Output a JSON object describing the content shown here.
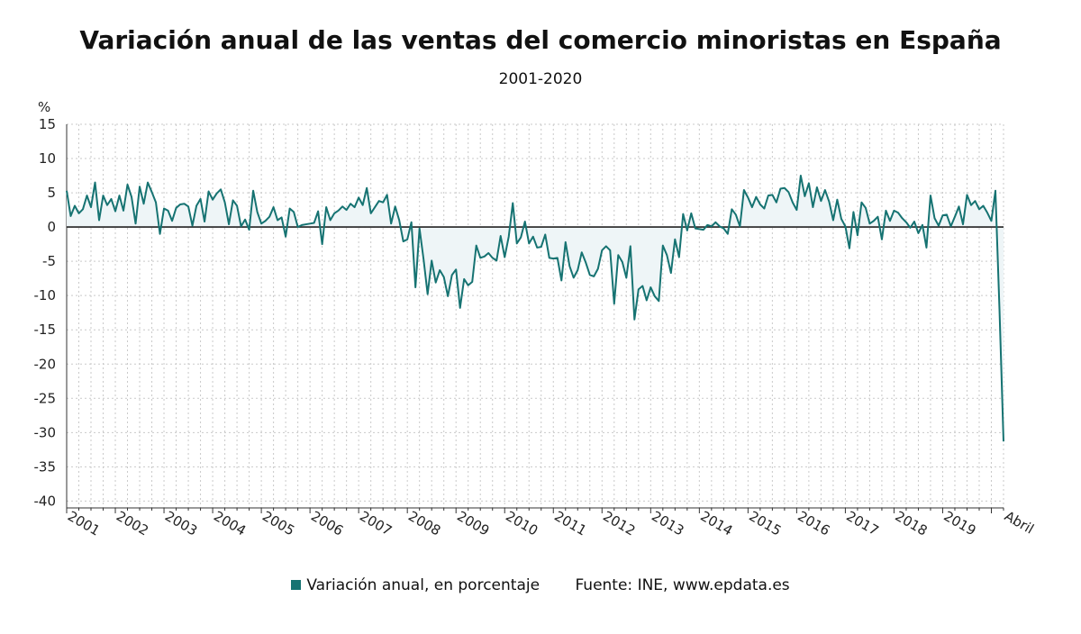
{
  "chart_data": {
    "type": "area",
    "title": "Variación anual de las ventas del comercio minoristas en España",
    "subtitle": "2001-2020",
    "ylabel": "%",
    "ylim": [
      -41,
      15
    ],
    "yticks": [
      15,
      10,
      5,
      0,
      -5,
      -10,
      -15,
      -20,
      -25,
      -30,
      -35,
      -40
    ],
    "xlim": [
      2001.0,
      2020.25
    ],
    "xticks": [
      {
        "value": 2001,
        "label": "2001"
      },
      {
        "value": 2002,
        "label": "2002"
      },
      {
        "value": 2003,
        "label": "2003"
      },
      {
        "value": 2004,
        "label": "2004"
      },
      {
        "value": 2005,
        "label": "2005"
      },
      {
        "value": 2006,
        "label": "2006"
      },
      {
        "value": 2007,
        "label": "2007"
      },
      {
        "value": 2008,
        "label": "2008"
      },
      {
        "value": 2009,
        "label": "2009"
      },
      {
        "value": 2010,
        "label": "2010"
      },
      {
        "value": 2011,
        "label": "2011"
      },
      {
        "value": 2012,
        "label": "2012"
      },
      {
        "value": 2013,
        "label": "2013"
      },
      {
        "value": 2014,
        "label": "2014"
      },
      {
        "value": 2015,
        "label": "2015"
      },
      {
        "value": 2016,
        "label": "2016"
      },
      {
        "value": 2017,
        "label": "2017"
      },
      {
        "value": 2018,
        "label": "2018"
      },
      {
        "value": 2019,
        "label": "2019"
      },
      {
        "value": 2020.25,
        "label": "Abril"
      }
    ],
    "grid": true,
    "zero_line": true,
    "legend_position": "bottom",
    "colors": {
      "line": "#167372",
      "fill": "#eef5f7",
      "grid": "#c9c9c9",
      "zero": "#222222"
    },
    "series": [
      {
        "name": "Variación anual, en porcentaje",
        "start": "2001-01",
        "frequency": "monthly",
        "values": [
          5.3,
          1.6,
          3.1,
          2.0,
          2.6,
          4.6,
          2.9,
          6.5,
          1.0,
          4.6,
          3.2,
          4.1,
          2.3,
          4.6,
          2.4,
          6.2,
          4.4,
          0.5,
          5.9,
          3.4,
          6.5,
          5.1,
          3.6,
          -1.0,
          2.7,
          2.4,
          0.9,
          2.8,
          3.3,
          3.4,
          3.0,
          0.2,
          3.1,
          4.1,
          0.8,
          5.2,
          4.0,
          4.9,
          5.5,
          3.6,
          0.4,
          3.9,
          3.1,
          0.1,
          1.1,
          -0.4,
          5.3,
          2.2,
          0.5,
          0.9,
          1.5,
          2.9,
          1.0,
          1.4,
          -1.4,
          2.7,
          2.2,
          0.0,
          0.3,
          0.4,
          0.5,
          0.6,
          2.3,
          -2.5,
          2.9,
          1.0,
          2.0,
          2.4,
          3.0,
          2.5,
          3.4,
          2.9,
          4.3,
          3.2,
          5.7,
          2.0,
          2.9,
          3.8,
          3.6,
          4.7,
          0.5,
          3.0,
          1.0,
          -2.1,
          -1.8,
          0.7,
          -8.8,
          -0.2,
          -4.7,
          -9.8,
          -4.9,
          -8.1,
          -6.3,
          -7.3,
          -10.1,
          -7.0,
          -6.2,
          -11.8,
          -7.6,
          -8.5,
          -8.0,
          -2.7,
          -4.5,
          -4.3,
          -3.8,
          -4.5,
          -4.9,
          -1.3,
          -4.4,
          -1.4,
          3.5,
          -2.4,
          -1.5,
          0.8,
          -2.4,
          -1.4,
          -3.0,
          -2.9,
          -1.1,
          -4.5,
          -4.6,
          -4.5,
          -7.8,
          -2.2,
          -5.7,
          -7.4,
          -6.3,
          -3.7,
          -5.2,
          -7.0,
          -7.2,
          -6.1,
          -3.4,
          -2.8,
          -3.4,
          -11.2,
          -4.1,
          -5.1,
          -7.4,
          -2.8,
          -13.5,
          -9.1,
          -8.6,
          -10.7,
          -8.8,
          -10.1,
          -10.8,
          -2.7,
          -4.1,
          -6.7,
          -1.8,
          -4.4,
          1.9,
          -0.5,
          2.0,
          -0.2,
          -0.3,
          -0.4,
          0.3,
          0.1,
          0.7,
          0.1,
          -0.2,
          -1.0,
          2.6,
          1.8,
          0.1,
          5.4,
          4.3,
          2.9,
          4.4,
          3.3,
          2.7,
          4.6,
          4.7,
          3.6,
          5.6,
          5.7,
          5.1,
          3.6,
          2.5,
          7.5,
          4.5,
          6.4,
          2.9,
          5.8,
          3.8,
          5.4,
          3.7,
          1.0,
          4.0,
          1.2,
          0.1,
          -3.1,
          2.2,
          -1.2,
          3.6,
          2.8,
          0.5,
          0.9,
          1.5,
          -1.8,
          2.4,
          0.9,
          2.4,
          2.1,
          1.3,
          0.7,
          -0.1,
          0.8,
          -0.9,
          0.3,
          -3.0,
          4.6,
          1.3,
          0.2,
          1.7,
          1.8,
          0.1,
          1.5,
          3.0,
          0.4,
          4.7,
          3.2,
          3.8,
          2.6,
          3.1,
          2.1,
          0.9,
          5.3,
          -12.0,
          -31.3
        ]
      }
    ]
  },
  "legend": {
    "series_label": "Variación anual, en porcentaje",
    "source": "Fuente: INE, www.epdata.es"
  }
}
